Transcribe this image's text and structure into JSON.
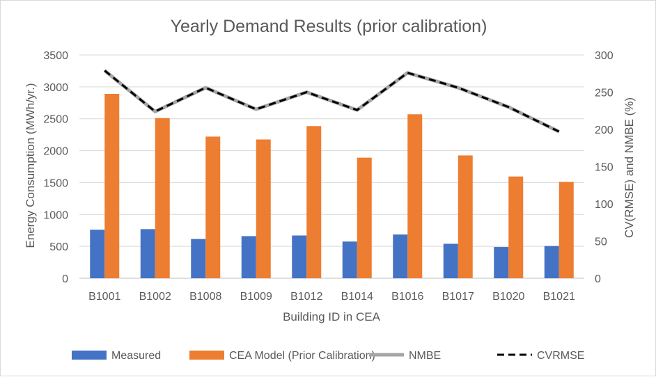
{
  "chart_data": {
    "type": "bar",
    "title": "Yearly Demand Results (prior calibration)",
    "xlabel": "Building ID in CEA",
    "ylabel": "Energy Consumption (MWh/yr.)",
    "y2label": "CV(RMSE) and NMBE (%)",
    "categories": [
      "B1001",
      "B1002",
      "B1008",
      "B1009",
      "B1012",
      "B1014",
      "B1016",
      "B1017",
      "B1020",
      "B1021"
    ],
    "ylim": [
      0,
      3500
    ],
    "yticks": [
      0,
      500,
      1000,
      1500,
      2000,
      2500,
      3000,
      3500
    ],
    "y2lim": [
      0,
      300
    ],
    "y2ticks": [
      0,
      50,
      100,
      150,
      200,
      250,
      300
    ],
    "grid": true,
    "legend_position": "bottom",
    "series": [
      {
        "name": "Measured",
        "type": "bar",
        "axis": "left",
        "color": "#4472c4",
        "values": [
          760,
          770,
          615,
          660,
          670,
          575,
          685,
          540,
          490,
          505
        ]
      },
      {
        "name": "CEA Model (Prior Calibration)",
        "type": "bar",
        "axis": "left",
        "color": "#ed7d31",
        "values": [
          2890,
          2510,
          2220,
          2175,
          2385,
          1890,
          2570,
          1925,
          1595,
          1510
        ]
      },
      {
        "name": "NMBE",
        "type": "line",
        "axis": "right",
        "color": "#a5a5a5",
        "style": "solid",
        "values": [
          279,
          224,
          256,
          227,
          250,
          226,
          276,
          256,
          230,
          197
        ]
      },
      {
        "name": "CVRMSE",
        "type": "line",
        "axis": "right",
        "color": "#000000",
        "style": "dashed",
        "values": [
          279,
          224,
          256,
          227,
          250,
          226,
          276,
          256,
          230,
          197
        ]
      }
    ]
  }
}
